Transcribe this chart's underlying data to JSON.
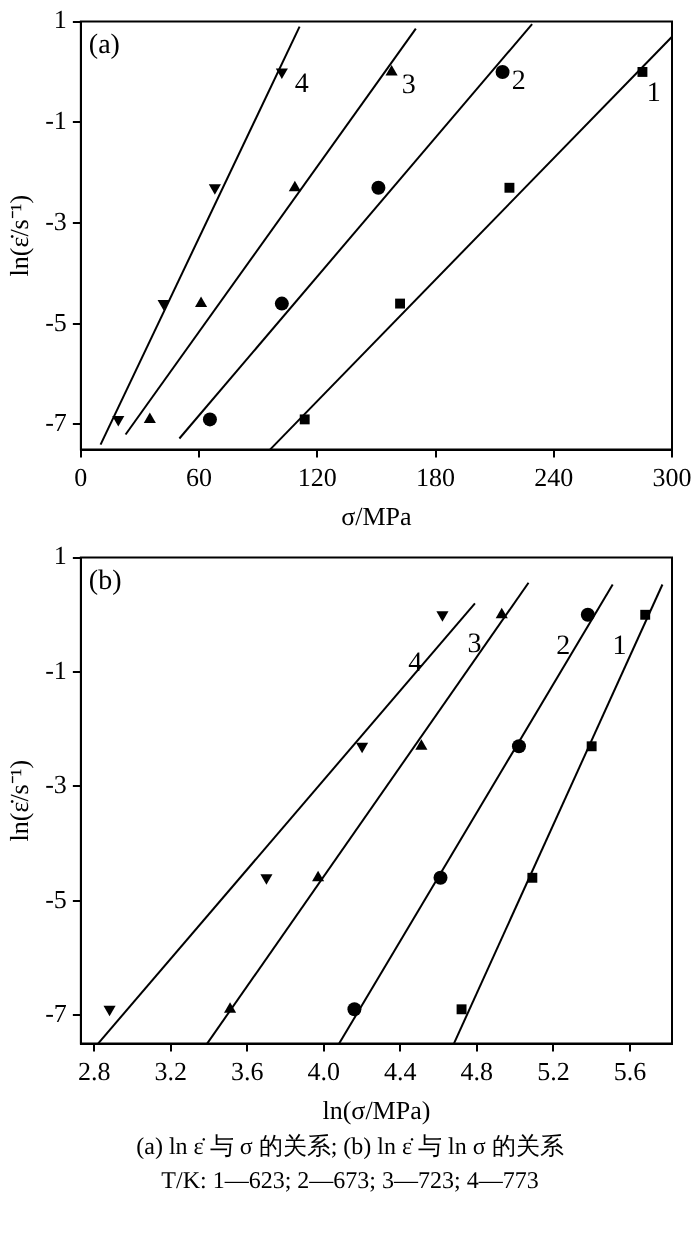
{
  "chart_data": [
    {
      "type": "scatter",
      "xlabel": "σ/MPa",
      "ylabel": "ln(ε̇/s⁻¹)",
      "xlim": [
        0,
        300
      ],
      "xticks": [
        0,
        60,
        120,
        180,
        240,
        300
      ],
      "ylim": [
        -7.5,
        1
      ],
      "yticks": [
        1,
        -1,
        -3,
        -5,
        -7
      ],
      "grid": false,
      "legend": false,
      "series": [
        {
          "color": "#000000",
          "marker": "square",
          "x": [
            285,
            217.5,
            162,
            113.6
          ],
          "values": [
            0,
            -2.3,
            -4.6,
            -6.9
          ]
        },
        {
          "color": "#000000",
          "marker": "circle",
          "x": [
            214,
            151,
            102,
            65.5
          ],
          "values": [
            0,
            -2.3,
            -4.6,
            -6.9
          ]
        },
        {
          "color": "#000000",
          "marker": "triangle",
          "x": [
            157.7,
            108.6,
            61,
            35
          ],
          "values": [
            0,
            -2.3,
            -4.6,
            -6.9
          ]
        },
        {
          "color": "#000000",
          "marker": "triangle-down",
          "x": [
            102,
            68,
            42,
            19
          ],
          "values": [
            0,
            -2.3,
            -4.6,
            -6.9
          ]
        },
        {
          "type": "line",
          "name": "1",
          "color": "#000000",
          "marker": "none",
          "x": [
            96,
            300
          ],
          "values": [
            -7.5,
            0.7
          ]
        },
        {
          "type": "line",
          "name": "2",
          "color": "#000000",
          "marker": "none",
          "x": [
            50,
            229
          ],
          "values": [
            -7.28,
            0.95
          ]
        },
        {
          "type": "line",
          "name": "3",
          "color": "#000000",
          "marker": "none",
          "x": [
            22.7,
            170
          ],
          "values": [
            -7.2,
            0.86
          ]
        },
        {
          "type": "line",
          "name": "4",
          "color": "#000000",
          "marker": "none",
          "x": [
            10,
            111
          ],
          "values": [
            -7.4,
            0.9
          ]
        }
      ],
      "annotations": [
        "(a)"
      ]
    },
    {
      "type": "scatter",
      "xlabel": "ln(σ/MPa)",
      "ylabel": "ln(ε̇/s⁻¹)",
      "xlim": [
        2.73,
        5.82
      ],
      "xticks": [
        {
          "value": 2.8,
          "label": "2.8"
        },
        {
          "value": 3.2,
          "label": "3.2"
        },
        {
          "value": 3.6,
          "label": "3.6"
        },
        {
          "value": 4.0,
          "label": "4.0"
        },
        {
          "value": 4.4,
          "label": "4.4"
        },
        {
          "value": 4.8,
          "label": "4.8"
        },
        {
          "value": 5.2,
          "label": "5.2"
        },
        {
          "value": 5.6,
          "label": "5.6"
        }
      ],
      "ylim": [
        -7.5,
        1
      ],
      "yticks": [
        1,
        -1,
        -3,
        -5,
        -7
      ],
      "grid": false,
      "legend": false,
      "series": [
        {
          "color": "#000000",
          "marker": "square",
          "x": [
            5.68,
            5.4,
            5.09,
            4.72
          ],
          "values": [
            0,
            -2.3,
            -4.6,
            -6.9
          ]
        },
        {
          "color": "#000000",
          "marker": "circle",
          "x": [
            5.38,
            5.02,
            4.61,
            4.16
          ],
          "values": [
            0,
            -2.3,
            -4.6,
            -6.9
          ]
        },
        {
          "color": "#000000",
          "marker": "triangle",
          "x": [
            4.93,
            4.51,
            3.97,
            3.51
          ],
          "values": [
            0,
            -2.3,
            -4.6,
            -6.9
          ]
        },
        {
          "color": "#000000",
          "marker": "triangle-down",
          "x": [
            4.62,
            4.2,
            3.7,
            2.88
          ],
          "values": [
            0,
            -2.3,
            -4.6,
            -6.9
          ]
        },
        {
          "type": "line",
          "name": "1",
          "color": "#000000",
          "marker": "none",
          "x": [
            4.68,
            5.77
          ],
          "values": [
            -7.5,
            0.53
          ]
        },
        {
          "type": "line",
          "name": "2",
          "color": "#000000",
          "marker": "none",
          "x": [
            4.08,
            5.51
          ],
          "values": [
            -7.5,
            0.53
          ]
        },
        {
          "type": "line",
          "name": "3",
          "color": "#000000",
          "marker": "none",
          "x": [
            3.39,
            5.07
          ],
          "values": [
            -7.5,
            0.56
          ]
        },
        {
          "type": "line",
          "name": "4",
          "color": "#000000",
          "marker": "none",
          "x": [
            2.82,
            4.79
          ],
          "values": [
            -7.5,
            0.2
          ]
        }
      ],
      "annotations": [
        "(b)",
        "(a)  ln ε̇ 与 σ 的关系; (b)  ln ε̇ 与 ln σ 的关系",
        "T/K: 1—623; 2—673; 3—723; 4—773"
      ]
    }
  ]
}
